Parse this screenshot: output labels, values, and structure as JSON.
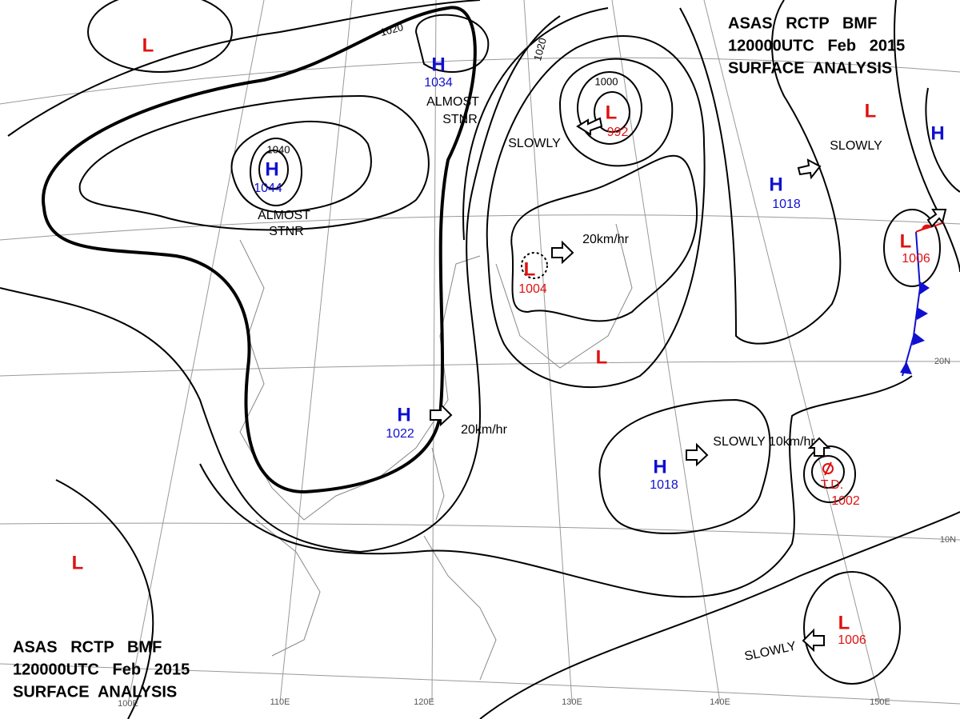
{
  "header": {
    "line1": "ASAS   RCTP   BMF",
    "line2": "120000UTC   Feb   2015",
    "line3": "SURFACE  ANALYSIS"
  },
  "centers": [
    {
      "symbol": "L"
    },
    {
      "symbol": "H",
      "pressure": "1034",
      "notes": [
        "ALMOST",
        "STNR"
      ]
    },
    {
      "symbol": "H",
      "pressure": "1044",
      "notes": [
        "ALMOST",
        "STNR"
      ]
    },
    {
      "symbol": "L",
      "pressure": "992",
      "motion": "SLOWLY"
    },
    {
      "symbol": "L",
      "pressure": "1004",
      "motion": "20km/hr"
    },
    {
      "symbol": "L"
    },
    {
      "symbol": "H",
      "pressure": "1018",
      "motion": "SLOWLY"
    },
    {
      "symbol": "L"
    },
    {
      "symbol": "H"
    },
    {
      "symbol": "L",
      "pressure": "1006"
    },
    {
      "symbol": "H",
      "pressure": "1022",
      "motion": "20km/hr"
    },
    {
      "symbol": "H",
      "pressure": "1018",
      "motion": "SLOWLY 10km/hr"
    },
    {
      "symbol": "T.D.",
      "pressure": "1002"
    },
    {
      "symbol": "L",
      "pressure": "1006",
      "motion": "SLOWLY"
    },
    {
      "symbol": "L"
    }
  ],
  "isobar_labels": [
    "1040",
    "1000",
    "1020",
    "1020"
  ],
  "grid_labels": {
    "lon": [
      "100E",
      "110E",
      "120E",
      "130E",
      "140E",
      "150E"
    ],
    "lat": [
      "20N",
      "10N"
    ]
  }
}
